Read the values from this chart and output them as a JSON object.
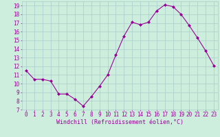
{
  "x": [
    0,
    1,
    2,
    3,
    4,
    5,
    6,
    7,
    8,
    9,
    10,
    11,
    12,
    13,
    14,
    15,
    16,
    17,
    18,
    19,
    20,
    21,
    22,
    23
  ],
  "y": [
    11.5,
    10.5,
    10.5,
    10.3,
    8.8,
    8.8,
    8.2,
    7.4,
    8.5,
    9.7,
    11.0,
    13.3,
    15.5,
    17.1,
    16.8,
    17.1,
    18.4,
    19.1,
    18.9,
    18.0,
    16.7,
    15.3,
    13.8,
    12.1
  ],
  "line_color": "#990099",
  "marker": "D",
  "marker_size": 2.0,
  "bg_color": "#ceeedd",
  "grid_color": "#aacccc",
  "xlabel": "Windchill (Refroidissement éolien,°C)",
  "xlabel_color": "#990099",
  "xlabel_fontsize": 6.0,
  "tick_color": "#990099",
  "tick_fontsize": 5.5,
  "ylim": [
    7,
    19.5
  ],
  "yticks": [
    7,
    8,
    9,
    10,
    11,
    12,
    13,
    14,
    15,
    16,
    17,
    18,
    19
  ],
  "xticks": [
    0,
    1,
    2,
    3,
    4,
    5,
    6,
    7,
    8,
    9,
    10,
    11,
    12,
    13,
    14,
    15,
    16,
    17,
    18,
    19,
    20,
    21,
    22,
    23
  ],
  "xtick_labels": [
    "0",
    "1",
    "2",
    "3",
    "4",
    "5",
    "6",
    "7",
    "8",
    "9",
    "10",
    "11",
    "12",
    "13",
    "14",
    "15",
    "16",
    "17",
    "18",
    "19",
    "20",
    "21",
    "22",
    "23"
  ]
}
